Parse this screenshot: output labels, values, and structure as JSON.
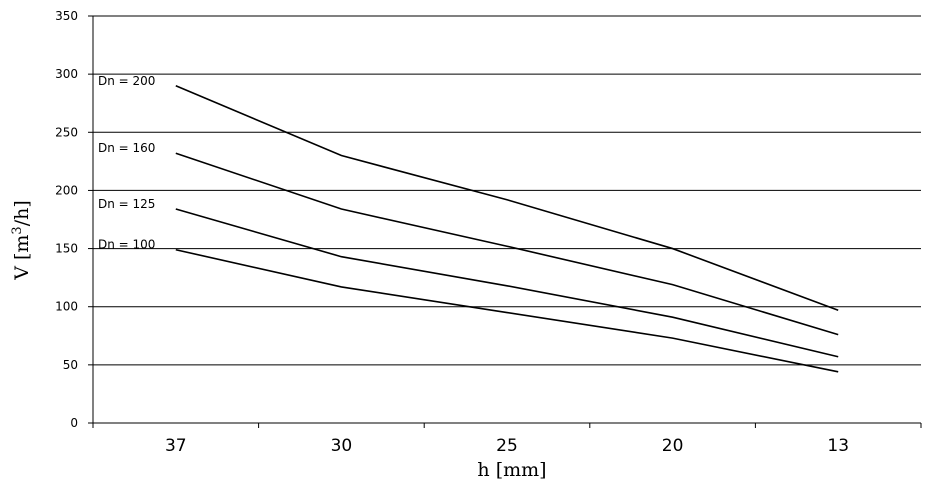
{
  "chart_data": {
    "type": "line",
    "title": "",
    "xlabel": "h [mm]",
    "ylabel": "V [m³/h]",
    "ylabel_parts": {
      "main": "V [m",
      "sup": "3",
      "tail": "/h]"
    },
    "categories": [
      "37",
      "30",
      "25",
      "20",
      "13"
    ],
    "ylim": [
      0,
      350
    ],
    "yticks": [
      0,
      50,
      100,
      150,
      200,
      250,
      300,
      350
    ],
    "grid": "horizontal",
    "series": [
      {
        "name": "Dn = 200",
        "values": [
          290,
          230,
          192,
          150,
          97
        ]
      },
      {
        "name": "Dn = 160",
        "values": [
          232,
          184,
          152,
          119,
          76
        ]
      },
      {
        "name": "Dn = 125",
        "values": [
          184,
          143,
          118,
          91,
          57
        ]
      },
      {
        "name": "Dn = 100",
        "values": [
          149,
          117,
          95,
          73,
          44
        ]
      }
    ],
    "line_color": "#000000",
    "grid_color": "#000000"
  }
}
